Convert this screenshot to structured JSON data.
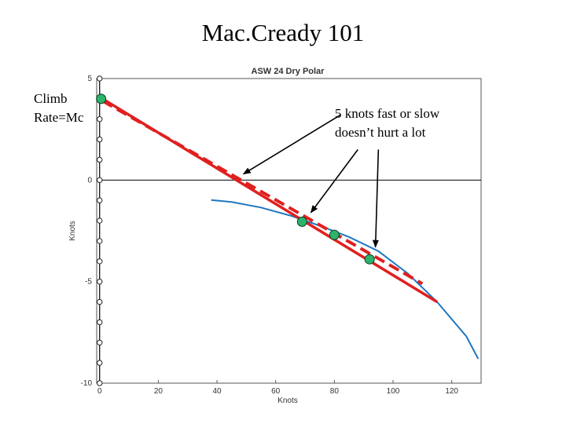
{
  "slide": {
    "title": "Mac.Cready 101",
    "side_label_line1": "Climb",
    "side_label_line2": "Rate=Mc",
    "annotation_line1": "5 knots fast or slow",
    "annotation_line2": "doesn’t hurt a lot"
  },
  "colors": {
    "polar": "#1f78c1",
    "tangent": "#e02020",
    "marker_fill": "#2db36b",
    "axis_line": "#000000"
  },
  "chart_data": {
    "type": "line",
    "title": "ASW 24 Dry Polar",
    "xlabel": "Knots",
    "ylabel": "Knots",
    "xlim": [
      -1,
      130
    ],
    "ylim": [
      -10,
      5
    ],
    "x_ticks": [
      0,
      20,
      40,
      60,
      80,
      100,
      120
    ],
    "y_ticks": [
      5,
      0,
      -5,
      -10
    ],
    "grid": false,
    "series": [
      {
        "style": "polar-curve",
        "x": [
          38,
          45,
          55,
          65,
          75,
          85,
          95,
          105,
          115,
          125,
          129
        ],
        "y": [
          -0.98,
          -1.08,
          -1.35,
          -1.75,
          -2.25,
          -2.8,
          -3.5,
          -4.6,
          -6.0,
          -7.7,
          -8.8
        ]
      },
      {
        "style": "solid-tangent",
        "x": [
          1,
          115
        ],
        "y": [
          4.0,
          -6.0
        ]
      },
      {
        "style": "dashed-tangent",
        "x": [
          1,
          110
        ],
        "y": [
          3.9,
          -5.1
        ]
      },
      {
        "style": "climb-axis-markers",
        "x": [
          0,
          0,
          0,
          0,
          0,
          0,
          0,
          0,
          0,
          0,
          0,
          0,
          0,
          0,
          0,
          0
        ],
        "y": [
          5,
          4,
          3,
          2,
          1,
          0,
          -1,
          -2,
          -3,
          -4,
          -5,
          -6,
          -7,
          -8,
          -9,
          -10
        ]
      }
    ],
    "points": [
      {
        "x": 0.5,
        "y": 4.0
      },
      {
        "x": 69,
        "y": -2.05
      },
      {
        "x": 80,
        "y": -2.7
      },
      {
        "x": 92,
        "y": -3.9
      }
    ],
    "arrows": [
      {
        "from": [
          82,
          3.2
        ],
        "to": [
          49,
          0.3
        ]
      },
      {
        "from": [
          88,
          1.5
        ],
        "to": [
          72,
          -1.6
        ]
      },
      {
        "from": [
          95,
          1.5
        ],
        "to": [
          94,
          -3.3
        ]
      }
    ]
  }
}
